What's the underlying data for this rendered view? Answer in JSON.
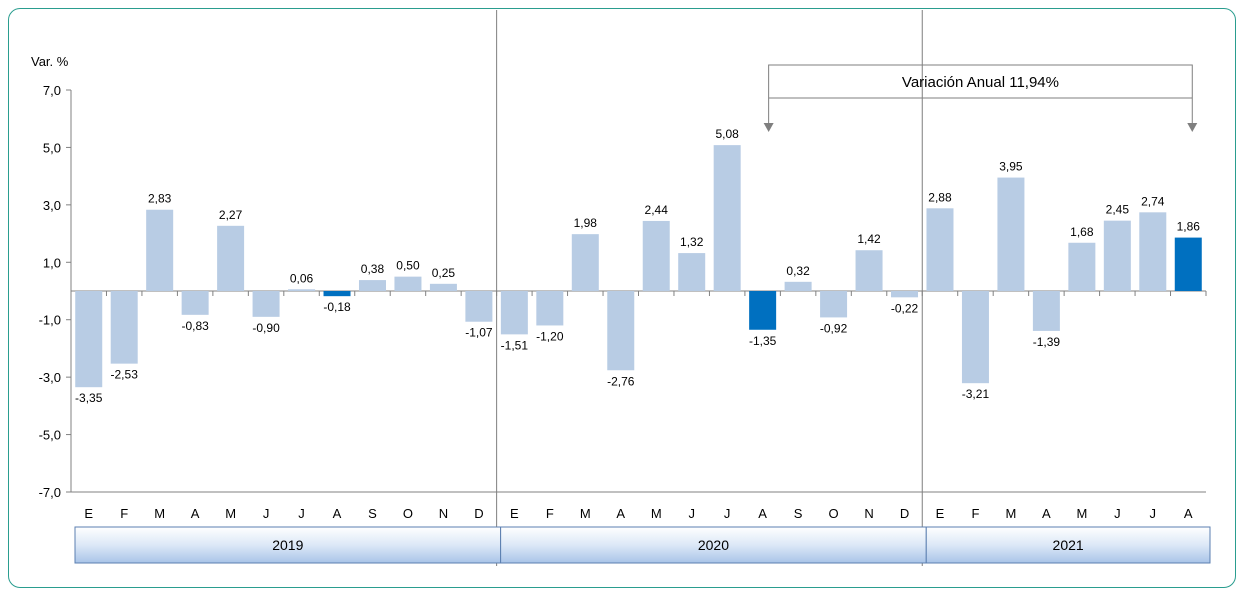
{
  "chart_data": {
    "type": "bar",
    "ylabel": "Var. %",
    "ylim": [
      -7,
      7
    ],
    "yticks": [
      "7,0",
      "5,0",
      "3,0",
      "1,0",
      "-1,0",
      "-3,0",
      "-5,0",
      "-7,0"
    ],
    "ytick_values": [
      7,
      5,
      3,
      1,
      -1,
      -3,
      -5,
      -7
    ],
    "categories": [
      "E",
      "F",
      "M",
      "A",
      "M",
      "J",
      "J",
      "A",
      "S",
      "O",
      "N",
      "D",
      "E",
      "F",
      "M",
      "A",
      "M",
      "J",
      "J",
      "A",
      "S",
      "O",
      "N",
      "D",
      "E",
      "F",
      "M",
      "A",
      "M",
      "J",
      "J",
      "A"
    ],
    "values": [
      -3.35,
      -2.53,
      2.83,
      -0.83,
      2.27,
      -0.9,
      0.06,
      -0.18,
      0.38,
      0.5,
      0.25,
      -1.07,
      -1.51,
      -1.2,
      1.98,
      -2.76,
      2.44,
      1.32,
      5.08,
      -1.35,
      0.32,
      -0.92,
      1.42,
      -0.22,
      2.88,
      -3.21,
      3.95,
      -1.39,
      1.68,
      2.45,
      2.74,
      1.86
    ],
    "value_labels": [
      "-3,35",
      "-2,53",
      "2,83",
      "-0,83",
      "2,27",
      "-0,90",
      "0,06",
      "-0,18",
      "0,38",
      "0,50",
      "0,25",
      "-1,07",
      "-1,51",
      "-1,20",
      "1,98",
      "-2,76",
      "2,44",
      "1,32",
      "5,08",
      "-1,35",
      "0,32",
      "-0,92",
      "1,42",
      "-0,22",
      "2,88",
      "-3,21",
      "3,95",
      "-1,39",
      "1,68",
      "2,45",
      "2,74",
      "1,86"
    ],
    "highlight_indices": [
      7,
      19,
      31
    ],
    "years": [
      {
        "label": "2019",
        "start": 0,
        "end": 11
      },
      {
        "label": "2020",
        "start": 12,
        "end": 23
      },
      {
        "label": "2021",
        "start": 24,
        "end": 31
      }
    ],
    "annotation": {
      "text": "Variación Anual 11,94%",
      "from_index": 19,
      "to_index": 31
    },
    "colors": {
      "bar": "#b8cce4",
      "highlight": "#0070c0",
      "frame": "#2a9d8f",
      "year_box": "#c9dcf2"
    }
  }
}
